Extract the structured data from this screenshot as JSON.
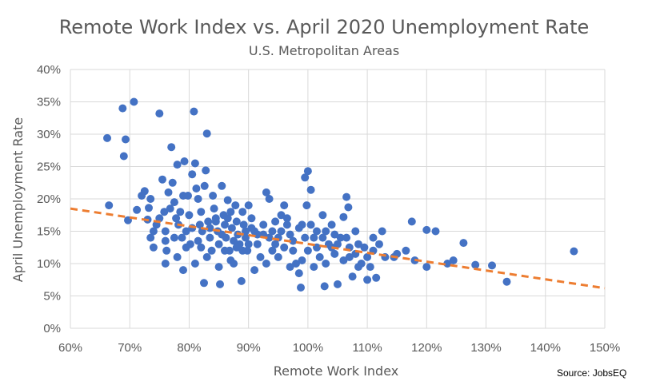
{
  "chart_data": {
    "type": "scatter",
    "title": "Remote Work Index vs. April 2020 Unemployment Rate",
    "subtitle": "U.S. Metropolitan Areas",
    "xlabel": "Remote Work Index",
    "ylabel": "April Unemployment Rate",
    "source": "Source: JobsEQ",
    "xlim": [
      0.6,
      1.5
    ],
    "ylim": [
      0,
      0.4
    ],
    "x_ticks": [
      0.6,
      0.7,
      0.8,
      0.9,
      1.0,
      1.1,
      1.2,
      1.3,
      1.4,
      1.5
    ],
    "x_tick_labels": [
      "60%",
      "70%",
      "80%",
      "90%",
      "100%",
      "110%",
      "120%",
      "130%",
      "140%",
      "150%"
    ],
    "y_ticks": [
      0,
      0.05,
      0.1,
      0.15,
      0.2,
      0.25,
      0.3,
      0.35,
      0.4
    ],
    "y_tick_labels": [
      "0%",
      "5%",
      "10%",
      "15%",
      "20%",
      "25%",
      "30%",
      "35%",
      "40%"
    ],
    "grid": true,
    "legend": "none",
    "point_color": "#4472C4",
    "trendline": {
      "type": "linear",
      "x": [
        0.6,
        1.5
      ],
      "y": [
        0.185,
        0.062
      ],
      "color": "#ED7D31",
      "style": "dashed"
    },
    "points": [
      [
        0.662,
        0.294
      ],
      [
        0.665,
        0.19
      ],
      [
        0.688,
        0.34
      ],
      [
        0.69,
        0.266
      ],
      [
        0.693,
        0.292
      ],
      [
        0.707,
        0.35
      ],
      [
        0.697,
        0.167
      ],
      [
        0.712,
        0.183
      ],
      [
        0.72,
        0.205
      ],
      [
        0.725,
        0.212
      ],
      [
        0.73,
        0.168
      ],
      [
        0.732,
        0.186
      ],
      [
        0.735,
        0.2
      ],
      [
        0.735,
        0.14
      ],
      [
        0.74,
        0.15
      ],
      [
        0.745,
        0.16
      ],
      [
        0.75,
        0.332
      ],
      [
        0.75,
        0.17
      ],
      [
        0.755,
        0.23
      ],
      [
        0.758,
        0.18
      ],
      [
        0.76,
        0.15
      ],
      [
        0.762,
        0.12
      ],
      [
        0.765,
        0.21
      ],
      [
        0.768,
        0.185
      ],
      [
        0.77,
        0.28
      ],
      [
        0.772,
        0.225
      ],
      [
        0.775,
        0.195
      ],
      [
        0.778,
        0.17
      ],
      [
        0.78,
        0.253
      ],
      [
        0.782,
        0.16
      ],
      [
        0.785,
        0.18
      ],
      [
        0.788,
        0.14
      ],
      [
        0.79,
        0.205
      ],
      [
        0.792,
        0.258
      ],
      [
        0.795,
        0.15
      ],
      [
        0.798,
        0.205
      ],
      [
        0.8,
        0.175
      ],
      [
        0.802,
        0.13
      ],
      [
        0.805,
        0.238
      ],
      [
        0.808,
        0.335
      ],
      [
        0.81,
        0.255
      ],
      [
        0.812,
        0.216
      ],
      [
        0.815,
        0.2
      ],
      [
        0.818,
        0.16
      ],
      [
        0.82,
        0.18
      ],
      [
        0.822,
        0.15
      ],
      [
        0.825,
        0.07
      ],
      [
        0.826,
        0.22
      ],
      [
        0.828,
        0.244
      ],
      [
        0.83,
        0.301
      ],
      [
        0.832,
        0.165
      ],
      [
        0.835,
        0.14
      ],
      [
        0.838,
        0.12
      ],
      [
        0.84,
        0.205
      ],
      [
        0.842,
        0.185
      ],
      [
        0.845,
        0.17
      ],
      [
        0.848,
        0.15
      ],
      [
        0.85,
        0.13
      ],
      [
        0.852,
        0.068
      ],
      [
        0.855,
        0.22
      ],
      [
        0.858,
        0.175
      ],
      [
        0.86,
        0.16
      ],
      [
        0.862,
        0.14
      ],
      [
        0.865,
        0.198
      ],
      [
        0.868,
        0.12
      ],
      [
        0.87,
        0.18
      ],
      [
        0.872,
        0.155
      ],
      [
        0.875,
        0.1
      ],
      [
        0.878,
        0.19
      ],
      [
        0.88,
        0.165
      ],
      [
        0.882,
        0.145
      ],
      [
        0.885,
        0.13
      ],
      [
        0.888,
        0.073
      ],
      [
        0.89,
        0.18
      ],
      [
        0.892,
        0.16
      ],
      [
        0.895,
        0.14
      ],
      [
        0.898,
        0.12
      ],
      [
        0.9,
        0.19
      ],
      [
        0.905,
        0.17
      ],
      [
        0.91,
        0.15
      ],
      [
        0.915,
        0.13
      ],
      [
        0.92,
        0.11
      ],
      [
        0.925,
        0.16
      ],
      [
        0.93,
        0.21
      ],
      [
        0.935,
        0.2
      ],
      [
        0.94,
        0.15
      ],
      [
        0.945,
        0.13
      ],
      [
        0.95,
        0.14
      ],
      [
        0.955,
        0.175
      ],
      [
        0.96,
        0.19
      ],
      [
        0.965,
        0.16
      ],
      [
        0.97,
        0.145
      ],
      [
        0.975,
        0.12
      ],
      [
        0.98,
        0.1
      ],
      [
        0.985,
        0.085
      ],
      [
        0.988,
        0.063
      ],
      [
        0.99,
        0.16
      ],
      [
        0.995,
        0.233
      ],
      [
        0.998,
        0.19
      ],
      [
        1.0,
        0.243
      ],
      [
        1.005,
        0.214
      ],
      [
        1.01,
        0.14
      ],
      [
        1.015,
        0.125
      ],
      [
        1.02,
        0.11
      ],
      [
        1.025,
        0.175
      ],
      [
        1.028,
        0.065
      ],
      [
        1.03,
        0.15
      ],
      [
        1.035,
        0.13
      ],
      [
        1.04,
        0.16
      ],
      [
        1.045,
        0.115
      ],
      [
        1.05,
        0.068
      ],
      [
        1.055,
        0.14
      ],
      [
        1.06,
        0.172
      ],
      [
        1.065,
        0.203
      ],
      [
        1.068,
        0.187
      ],
      [
        1.07,
        0.125
      ],
      [
        1.075,
        0.08
      ],
      [
        1.08,
        0.15
      ],
      [
        1.085,
        0.13
      ],
      [
        1.09,
        0.1
      ],
      [
        1.1,
        0.075
      ],
      [
        1.105,
        0.095
      ],
      [
        1.11,
        0.12
      ],
      [
        1.115,
        0.078
      ],
      [
        1.125,
        0.15
      ],
      [
        1.13,
        0.11
      ],
      [
        1.15,
        0.115
      ],
      [
        1.165,
        0.12
      ],
      [
        1.175,
        0.165
      ],
      [
        1.18,
        0.105
      ],
      [
        1.2,
        0.152
      ],
      [
        1.2,
        0.095
      ],
      [
        1.215,
        0.15
      ],
      [
        1.235,
        0.1
      ],
      [
        1.245,
        0.105
      ],
      [
        1.262,
        0.132
      ],
      [
        1.282,
        0.098
      ],
      [
        1.31,
        0.097
      ],
      [
        1.335,
        0.072
      ],
      [
        1.448,
        0.119
      ],
      [
        0.76,
        0.1
      ],
      [
        0.78,
        0.11
      ],
      [
        0.79,
        0.09
      ],
      [
        0.81,
        0.1
      ],
      [
        0.83,
        0.11
      ],
      [
        0.85,
        0.095
      ],
      [
        0.87,
        0.105
      ],
      [
        0.89,
        0.12
      ],
      [
        0.91,
        0.09
      ],
      [
        0.93,
        0.1
      ],
      [
        0.95,
        0.11
      ],
      [
        0.97,
        0.095
      ],
      [
        0.99,
        0.105
      ],
      [
        1.01,
        0.095
      ],
      [
        1.03,
        0.1
      ],
      [
        1.06,
        0.105
      ],
      [
        1.08,
        0.115
      ],
      [
        1.1,
        0.11
      ],
      [
        0.775,
        0.14
      ],
      [
        0.795,
        0.125
      ],
      [
        0.815,
        0.135
      ],
      [
        0.835,
        0.155
      ],
      [
        0.855,
        0.145
      ],
      [
        0.875,
        0.135
      ],
      [
        0.895,
        0.15
      ],
      [
        0.915,
        0.145
      ],
      [
        0.935,
        0.14
      ],
      [
        0.955,
        0.15
      ],
      [
        0.975,
        0.135
      ],
      [
        0.995,
        0.14
      ],
      [
        1.015,
        0.15
      ],
      [
        1.045,
        0.145
      ],
      [
        1.065,
        0.14
      ],
      [
        1.095,
        0.125
      ],
      [
        1.12,
        0.13
      ],
      [
        1.145,
        0.11
      ],
      [
        0.74,
        0.125
      ],
      [
        0.76,
        0.135
      ],
      [
        0.82,
        0.125
      ],
      [
        0.86,
        0.12
      ],
      [
        0.88,
        0.125
      ],
      [
        0.9,
        0.13
      ],
      [
        0.94,
        0.12
      ],
      [
        0.96,
        0.125
      ],
      [
        1.0,
        0.12
      ],
      [
        1.04,
        0.125
      ],
      [
        1.07,
        0.11
      ],
      [
        1.085,
        0.095
      ],
      [
        0.805,
        0.155
      ],
      [
        0.845,
        0.165
      ],
      [
        0.865,
        0.17
      ],
      [
        0.905,
        0.155
      ],
      [
        0.925,
        0.145
      ],
      [
        0.945,
        0.165
      ],
      [
        0.965,
        0.17
      ],
      [
        0.985,
        0.155
      ],
      [
        1.005,
        0.16
      ],
      [
        1.025,
        0.14
      ],
      [
        1.05,
        0.13
      ],
      [
        1.11,
        0.14
      ]
    ]
  }
}
